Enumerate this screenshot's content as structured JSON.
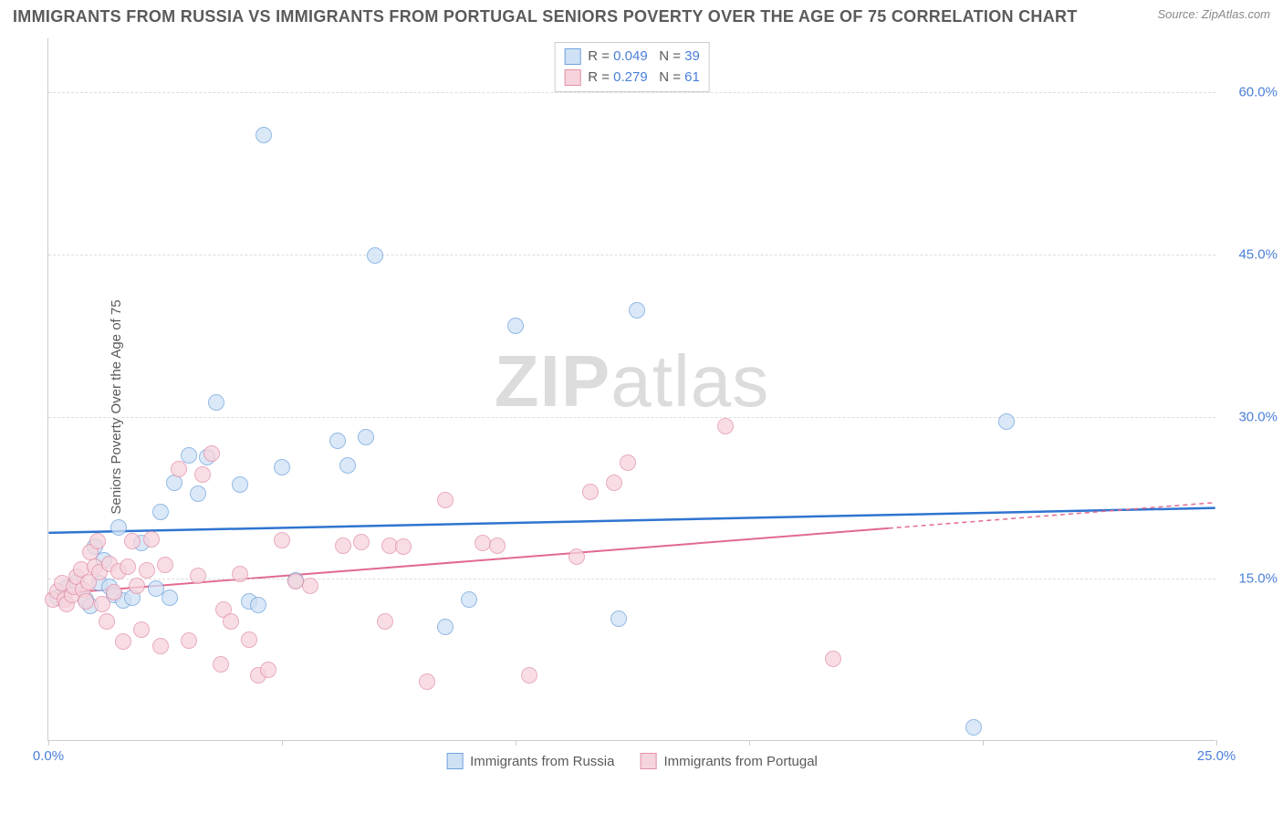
{
  "title": "IMMIGRANTS FROM RUSSIA VS IMMIGRANTS FROM PORTUGAL SENIORS POVERTY OVER THE AGE OF 75 CORRELATION CHART",
  "source": "Source: ZipAtlas.com",
  "ylabel": "Seniors Poverty Over the Age of 75",
  "watermark_a": "ZIP",
  "watermark_b": "atlas",
  "chart": {
    "type": "scatter",
    "background_color": "#ffffff",
    "grid_color": "#dddddd",
    "axis_color": "#cccccc",
    "xlim": [
      0,
      25
    ],
    "ylim": [
      0,
      65
    ],
    "xticks": [
      0,
      5,
      10,
      15,
      20,
      25
    ],
    "xtick_labels": [
      "0.0%",
      "",
      "",
      "",
      "",
      "25.0%"
    ],
    "ytick_values": [
      15,
      30,
      45,
      60
    ],
    "ytick_labels": [
      "15.0%",
      "30.0%",
      "45.0%",
      "60.0%"
    ],
    "label_fontsize": 15,
    "label_color": "#4a7fd8",
    "point_radius": 9,
    "point_stroke_width": 1.2,
    "series": [
      {
        "name": "Immigrants from Russia",
        "fill": "#cfe1f5",
        "stroke": "#6fa3de",
        "fill_opacity": 0.75,
        "R": "0.049",
        "N": "39",
        "trend": {
          "y_at_x0": 19.2,
          "y_at_xmax": 21.5,
          "color": "#2f74d0",
          "width": 2.5,
          "solid_until_x": 25
        },
        "points": [
          [
            0.2,
            13.2
          ],
          [
            0.4,
            14.1
          ],
          [
            0.6,
            14.6
          ],
          [
            0.8,
            13.0
          ],
          [
            0.9,
            12.4
          ],
          [
            1.0,
            17.9
          ],
          [
            1.1,
            14.5
          ],
          [
            1.2,
            16.6
          ],
          [
            1.3,
            14.2
          ],
          [
            1.4,
            13.4
          ],
          [
            1.5,
            19.7
          ],
          [
            1.6,
            12.9
          ],
          [
            1.8,
            13.2
          ],
          [
            2.0,
            18.2
          ],
          [
            2.3,
            14.0
          ],
          [
            2.4,
            21.1
          ],
          [
            2.6,
            13.2
          ],
          [
            2.7,
            23.8
          ],
          [
            3.0,
            26.3
          ],
          [
            3.2,
            22.8
          ],
          [
            3.4,
            26.2
          ],
          [
            3.6,
            31.2
          ],
          [
            4.1,
            23.6
          ],
          [
            4.3,
            12.8
          ],
          [
            4.5,
            12.5
          ],
          [
            4.6,
            56.0
          ],
          [
            5.0,
            25.2
          ],
          [
            5.3,
            14.8
          ],
          [
            6.2,
            27.7
          ],
          [
            6.4,
            25.4
          ],
          [
            6.8,
            28.0
          ],
          [
            7.0,
            44.8
          ],
          [
            8.5,
            10.5
          ],
          [
            9.0,
            13.0
          ],
          [
            10.0,
            38.3
          ],
          [
            12.2,
            11.2
          ],
          [
            12.6,
            39.8
          ],
          [
            19.8,
            1.2
          ],
          [
            20.5,
            29.5
          ]
        ]
      },
      {
        "name": "Immigrants from Portugal",
        "fill": "#f6d4dc",
        "stroke": "#e38fa8",
        "fill_opacity": 0.75,
        "R": "0.279",
        "N": "61",
        "trend": {
          "y_at_x0": 13.5,
          "y_at_xmax": 22.0,
          "color": "#e16a8e",
          "width": 2,
          "solid_until_x": 18,
          "dash_after": "5,4"
        },
        "points": [
          [
            0.1,
            13.0
          ],
          [
            0.2,
            13.8
          ],
          [
            0.3,
            14.5
          ],
          [
            0.35,
            13.0
          ],
          [
            0.4,
            12.6
          ],
          [
            0.5,
            13.4
          ],
          [
            0.55,
            14.2
          ],
          [
            0.6,
            15.1
          ],
          [
            0.7,
            15.8
          ],
          [
            0.75,
            13.9
          ],
          [
            0.8,
            12.8
          ],
          [
            0.85,
            14.6
          ],
          [
            0.9,
            17.4
          ],
          [
            1.0,
            16.0
          ],
          [
            1.05,
            18.4
          ],
          [
            1.1,
            15.5
          ],
          [
            1.15,
            12.6
          ],
          [
            1.25,
            11.0
          ],
          [
            1.3,
            16.3
          ],
          [
            1.4,
            13.7
          ],
          [
            1.5,
            15.6
          ],
          [
            1.6,
            9.1
          ],
          [
            1.7,
            16.0
          ],
          [
            1.8,
            18.4
          ],
          [
            1.9,
            14.3
          ],
          [
            2.0,
            10.2
          ],
          [
            2.1,
            15.7
          ],
          [
            2.2,
            18.6
          ],
          [
            2.4,
            8.7
          ],
          [
            2.5,
            16.2
          ],
          [
            2.8,
            25.1
          ],
          [
            3.0,
            9.2
          ],
          [
            3.2,
            15.2
          ],
          [
            3.3,
            24.6
          ],
          [
            3.5,
            26.5
          ],
          [
            3.7,
            7.0
          ],
          [
            3.75,
            12.1
          ],
          [
            3.9,
            11.0
          ],
          [
            4.1,
            15.4
          ],
          [
            4.3,
            9.3
          ],
          [
            4.5,
            6.0
          ],
          [
            4.7,
            6.5
          ],
          [
            5.0,
            18.5
          ],
          [
            5.3,
            14.7
          ],
          [
            5.6,
            14.3
          ],
          [
            6.3,
            18.0
          ],
          [
            6.7,
            18.3
          ],
          [
            7.2,
            11.0
          ],
          [
            7.3,
            18.0
          ],
          [
            7.6,
            17.9
          ],
          [
            8.1,
            5.4
          ],
          [
            8.5,
            22.2
          ],
          [
            9.3,
            18.2
          ],
          [
            9.6,
            18.0
          ],
          [
            10.3,
            6.0
          ],
          [
            11.3,
            17.0
          ],
          [
            11.6,
            23.0
          ],
          [
            12.1,
            23.8
          ],
          [
            12.4,
            25.7
          ],
          [
            14.5,
            29.0
          ],
          [
            16.8,
            7.5
          ]
        ]
      }
    ],
    "legend_top": {
      "border_color": "#cccccc",
      "text_color": "#5a5a5a",
      "value_color": "#4a7fd8",
      "rows": [
        {
          "R_label": "R =",
          "N_label": "N ="
        }
      ]
    }
  }
}
